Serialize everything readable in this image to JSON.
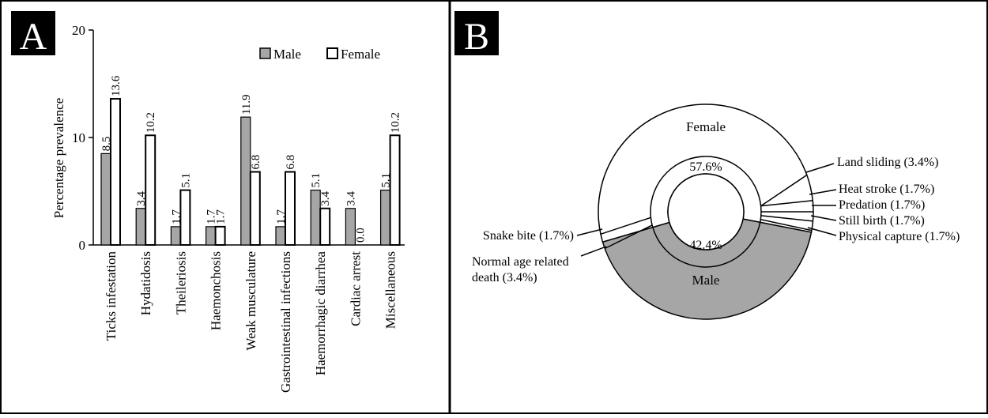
{
  "panels": {
    "a_label": "A",
    "b_label": "B"
  },
  "chart_data": [
    {
      "type": "bar",
      "panel": "A",
      "ylabel": "Percentage prevalence",
      "xlabel": "",
      "ylim": [
        0,
        20
      ],
      "yticks": [
        "0",
        "10",
        "20"
      ],
      "ytick_values": [
        0,
        10,
        20
      ],
      "categories": [
        "Ticks infestation",
        "Hydatidosis",
        "Theileriosis",
        "Haemonchosis",
        "Weak musculature",
        "Gastrointestinal infections",
        "Haemorrhagic diarrhea",
        "Cardiac arrest",
        "Miscellaneous"
      ],
      "series": [
        {
          "name": "Male",
          "color": "#a6a6a6",
          "values": [
            8.5,
            3.4,
            1.7,
            1.7,
            11.9,
            1.7,
            5.1,
            3.4,
            5.1
          ],
          "labels": [
            "8.5",
            "3.4",
            "1.7",
            "1.7",
            "11.9",
            "1.7",
            "5.1",
            "3.4",
            "5.1"
          ]
        },
        {
          "name": "Female",
          "color": "#ffffff",
          "values": [
            13.6,
            10.2,
            5.1,
            1.7,
            6.8,
            6.8,
            3.4,
            0.0,
            10.2
          ],
          "labels": [
            "13.6",
            "10.2",
            "5.1",
            "1.7",
            "6.8",
            "6.8",
            "3.4",
            "0.0",
            "10.2"
          ]
        }
      ],
      "legend": "top-right",
      "grid": false
    },
    {
      "type": "pie",
      "panel": "B",
      "outer": [
        {
          "name": "Female",
          "value": 57.6,
          "color": "#ffffff"
        },
        {
          "name": "Male",
          "value": 42.4,
          "color": "#a6a6a6"
        }
      ],
      "inner_labels": [
        "57.6%",
        "42.4%"
      ],
      "annotations": [
        {
          "text": "Land sliding (3.4%)",
          "value": 3.4
        },
        {
          "text": "Heat stroke (1.7%)",
          "value": 1.7
        },
        {
          "text": "Predation (1.7%)",
          "value": 1.7
        },
        {
          "text": "Still birth (1.7%)",
          "value": 1.7
        },
        {
          "text": "Physical capture (1.7%)",
          "value": 1.7
        },
        {
          "text": "Snake bite (1.7%)",
          "value": 1.7
        },
        {
          "text": "Normal age related",
          "text2": "death (3.4%)",
          "value": 3.4
        }
      ]
    }
  ]
}
